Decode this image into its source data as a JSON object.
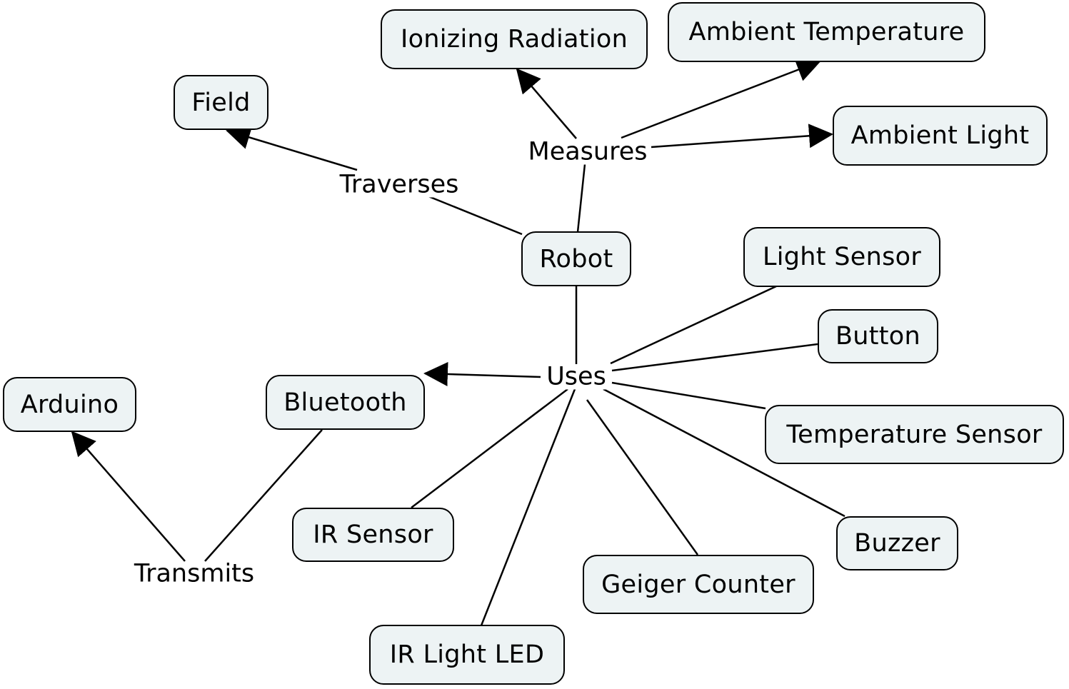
{
  "concepts": {
    "robot": "Robot",
    "field": "Field",
    "ionizing_radiation": "Ionizing Radiation",
    "ambient_temperature": "Ambient Temperature",
    "ambient_light": "Ambient Light",
    "light_sensor": "Light Sensor",
    "button": "Button",
    "temperature_sensor": "Temperature Sensor",
    "buzzer": "Buzzer",
    "geiger_counter": "Geiger Counter",
    "ir_light_led": "IR Light LED",
    "ir_sensor": "IR Sensor",
    "bluetooth": "Bluetooth",
    "arduino": "Arduino"
  },
  "links": {
    "traverses": "Traverses",
    "measures": "Measures",
    "uses": "Uses",
    "transmits": "Transmits"
  },
  "connections": [
    {
      "from": "robot",
      "via": "traverses",
      "to": [
        "field"
      ]
    },
    {
      "from": "robot",
      "via": "measures",
      "to": [
        "ionizing_radiation",
        "ambient_temperature",
        "ambient_light"
      ]
    },
    {
      "from": "robot",
      "via": "uses",
      "to": [
        "light_sensor",
        "button",
        "temperature_sensor",
        "buzzer",
        "geiger_counter",
        "ir_light_led",
        "ir_sensor",
        "bluetooth"
      ]
    },
    {
      "from": "bluetooth",
      "via": "transmits",
      "to": [
        "arduino"
      ]
    }
  ]
}
